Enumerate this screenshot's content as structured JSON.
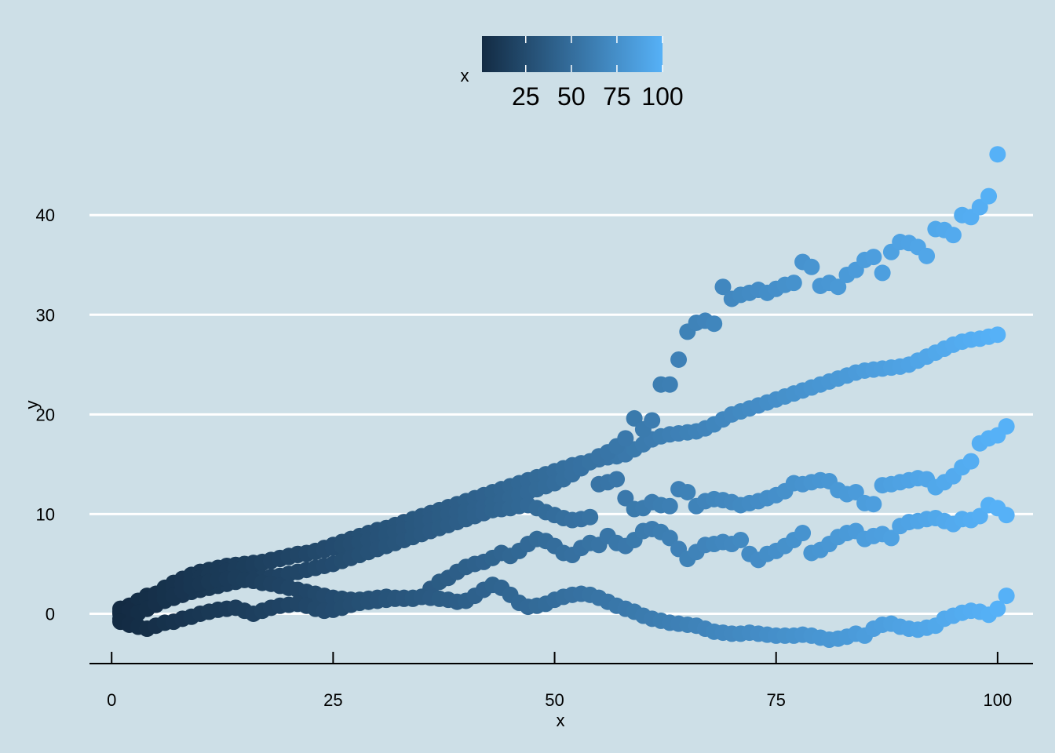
{
  "chart_data": {
    "type": "scatter",
    "xlabel": "x",
    "ylabel": "y",
    "xlim": [
      -2.5,
      104
    ],
    "ylim": [
      -5,
      46
    ],
    "x_ticks": [
      0,
      25,
      50,
      75,
      100
    ],
    "y_ticks": [
      0,
      10,
      20,
      30,
      40
    ],
    "grid": {
      "horizontal_major": true,
      "vertical": false
    },
    "legend": {
      "position": "top",
      "title": "x",
      "type": "colorbar",
      "range": [
        1,
        100
      ],
      "breaks": [
        25,
        50,
        75,
        100
      ],
      "low_color": "#132b43",
      "high_color": "#56b1f7"
    },
    "colors": {
      "background": "#cddfe7",
      "grid": "#ffffff",
      "axis": "#000000"
    },
    "series": [
      {
        "values": [
          0.0,
          0.8,
          1.3,
          1.8,
          2.0,
          2.6,
          3.1,
          3.5,
          3.9,
          4.2,
          4.4,
          4.6,
          4.8,
          4.9,
          5.0,
          5.1,
          5.2,
          5.4,
          5.6,
          5.8,
          6.0,
          6.1,
          6.3,
          6.6,
          6.9,
          7.2,
          7.5,
          7.8,
          8.1,
          8.4,
          8.6,
          8.9,
          9.2,
          9.5,
          9.8,
          10.1,
          10.4,
          10.7,
          11.0,
          11.3,
          11.6,
          11.9,
          12.2,
          12.5,
          12.8,
          13.1,
          13.4,
          13.7,
          14.0,
          14.3,
          14.6,
          14.9,
          15.1,
          15.3,
          15.5,
          15.7,
          15.8,
          16.0,
          16.5,
          17.0,
          17.5,
          17.8,
          18.0,
          18.1,
          18.2,
          18.3,
          18.6,
          19.0,
          19.5,
          20.0,
          20.3,
          20.6,
          20.9,
          21.2,
          21.5,
          21.8,
          22.1,
          22.4,
          22.7,
          23.0,
          23.3,
          23.6,
          23.9,
          24.2,
          24.4,
          24.5,
          24.6,
          24.7,
          24.8,
          25.0,
          25.4,
          25.8,
          26.2,
          26.6,
          27.0,
          27.3,
          27.5,
          27.6,
          27.8,
          28.0
        ]
      },
      {
        "values": [
          0.2,
          0.5,
          0.9,
          1.4,
          1.8,
          2.2,
          2.6,
          3.0,
          3.3,
          3.6,
          3.9,
          4.1,
          4.3,
          4.5,
          4.7,
          4.9,
          5.1,
          5.3,
          5.5,
          5.7,
          5.9,
          6.0,
          6.2,
          6.4,
          6.6,
          6.8,
          7.0,
          7.2,
          7.4,
          7.6,
          7.9,
          8.2,
          8.5,
          8.8,
          9.1,
          9.4,
          9.7,
          10.0,
          10.2,
          10.3,
          10.5,
          10.7,
          11.0,
          11.3,
          11.6,
          11.9,
          12.2,
          12.5,
          12.8,
          13.1,
          13.5,
          14.0,
          14.6,
          15.2,
          15.8,
          16.2,
          16.8,
          17.6,
          19.6,
          18.5,
          19.4,
          23.0,
          23.0,
          25.5,
          28.3,
          29.2,
          29.4,
          29.1,
          32.8,
          31.6,
          32.0,
          32.2,
          32.5,
          32.2,
          32.6,
          33.0,
          33.2,
          35.3,
          34.8,
          32.9,
          33.2,
          32.8,
          34.0,
          34.5,
          35.5,
          35.8,
          34.2,
          36.3,
          37.3,
          37.2,
          36.8,
          35.9,
          38.6,
          38.5,
          38.0,
          40.0,
          39.8,
          40.8,
          41.9,
          46.1
        ]
      },
      {
        "values": [
          -0.5,
          -0.3,
          0.1,
          0.5,
          0.9,
          1.3,
          1.6,
          1.9,
          2.2,
          2.4,
          2.6,
          2.8,
          3.0,
          3.2,
          3.4,
          3.5,
          3.6,
          3.7,
          3.8,
          4.0,
          4.2,
          4.4,
          4.6,
          4.8,
          5.0,
          5.3,
          5.6,
          5.9,
          6.2,
          6.5,
          6.8,
          7.1,
          7.4,
          7.7,
          8.0,
          8.3,
          8.6,
          8.9,
          9.2,
          9.5,
          9.8,
          10.1,
          10.4,
          10.5,
          10.6,
          10.8,
          10.9,
          10.6,
          10.2,
          9.9,
          9.6,
          9.4,
          9.5,
          9.7,
          13.0,
          13.2,
          13.5,
          11.6,
          10.5,
          10.6,
          11.2,
          10.9,
          10.8,
          12.5,
          12.2,
          10.8,
          11.3,
          11.5,
          11.4,
          11.2,
          10.9,
          11.1,
          11.3,
          11.6,
          11.9,
          12.3,
          13.1,
          13.0,
          13.2,
          13.4,
          13.3,
          12.4,
          12.0,
          12.2,
          11.1,
          11.0,
          12.9,
          13.0,
          13.2,
          13.4,
          13.6,
          13.5,
          12.7,
          13.2,
          13.8,
          14.7,
          15.3,
          17.1,
          17.6,
          17.9,
          18.8
        ]
      },
      {
        "values": [
          0.5,
          0.3,
          0.1,
          0.5,
          1.0,
          1.5,
          1.8,
          2.3,
          2.7,
          3.0,
          3.2,
          3.4,
          3.5,
          3.6,
          3.4,
          3.3,
          3.1,
          3.0,
          2.8,
          2.6,
          2.4,
          2.2,
          2.0,
          1.8,
          1.6,
          1.5,
          1.4,
          1.4,
          1.5,
          1.6,
          1.7,
          1.6,
          1.5,
          1.5,
          1.7,
          2.5,
          3.2,
          3.6,
          4.2,
          4.7,
          5.0,
          5.2,
          5.6,
          6.1,
          5.8,
          6.3,
          7.0,
          7.5,
          7.3,
          6.8,
          6.1,
          5.9,
          6.6,
          7.1,
          6.9,
          7.8,
          7.1,
          6.8,
          7.4,
          8.3,
          8.5,
          8.2,
          7.6,
          6.5,
          5.5,
          6.2,
          6.9,
          7.0,
          7.2,
          7.0,
          7.4,
          6.0,
          5.4,
          6.0,
          6.3,
          6.8,
          7.4,
          8.1,
          6.1,
          6.4,
          7.0,
          7.7,
          8.1,
          8.3,
          7.5,
          7.8,
          8.0,
          7.6,
          8.8,
          9.2,
          9.3,
          9.5,
          9.6,
          9.3,
          9.0,
          9.5,
          9.4,
          9.8,
          10.9,
          10.6,
          9.9
        ]
      },
      {
        "values": [
          -0.8,
          -1.1,
          -1.3,
          -1.5,
          -1.2,
          -0.9,
          -0.8,
          -0.5,
          -0.3,
          0.0,
          0.2,
          0.4,
          0.5,
          0.6,
          0.3,
          0.0,
          0.3,
          0.6,
          0.8,
          0.9,
          1.0,
          0.8,
          0.5,
          0.3,
          0.4,
          0.6,
          0.9,
          1.1,
          1.2,
          1.3,
          1.4,
          1.5,
          1.6,
          1.6,
          1.7,
          1.6,
          1.5,
          1.4,
          1.2,
          1.3,
          1.8,
          2.4,
          2.9,
          2.6,
          1.9,
          1.1,
          0.7,
          0.8,
          1.0,
          1.4,
          1.7,
          1.9,
          2.0,
          1.9,
          1.6,
          1.2,
          0.8,
          0.5,
          0.2,
          -0.2,
          -0.5,
          -0.7,
          -0.9,
          -1.0,
          -1.1,
          -1.2,
          -1.5,
          -1.8,
          -1.9,
          -2.0,
          -2.0,
          -1.9,
          -2.0,
          -2.1,
          -2.2,
          -2.2,
          -2.2,
          -2.1,
          -2.2,
          -2.4,
          -2.6,
          -2.5,
          -2.3,
          -2.0,
          -2.2,
          -1.5,
          -1.1,
          -1.0,
          -1.3,
          -1.5,
          -1.6,
          -1.4,
          -1.2,
          -0.5,
          -0.2,
          0.1,
          0.3,
          0.2,
          -0.1,
          0.5,
          1.8
        ]
      }
    ]
  }
}
